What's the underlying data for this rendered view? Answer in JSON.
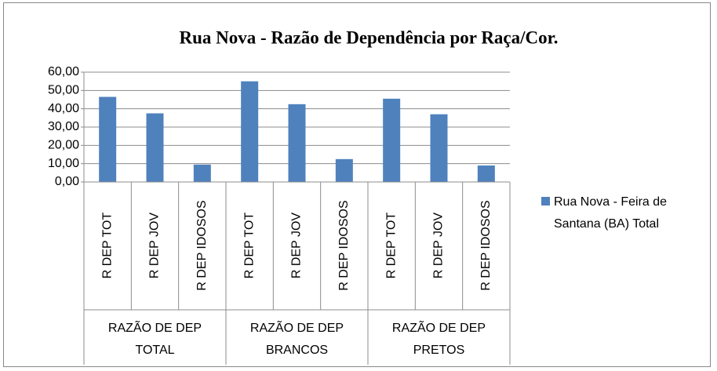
{
  "chart_data": {
    "type": "bar",
    "title": "Rua Nova - Razão de Dependência por Raça/Cor.",
    "categories": [
      "R DEP TOT",
      "R DEP JOV",
      "R DEP IDOSOS",
      "R DEP TOT",
      "R DEP JOV",
      "R DEP IDOSOS",
      "R DEP TOT",
      "R DEP JOV",
      "R DEP IDOSOS"
    ],
    "groups": [
      "RAZÃO DE DEP TOTAL",
      "RAZÃO DE DEP BRANCOS",
      "RAZÃO DE DEP PRETOS"
    ],
    "series": [
      {
        "name": "Rua Nova - Feira de Santana (BA) Total",
        "color": "#4f81bd",
        "values": [
          46.5,
          37.5,
          9.5,
          55,
          42.5,
          12.5,
          45.5,
          37,
          9
        ]
      }
    ],
    "ylim": [
      0,
      60
    ],
    "yticks": [
      {
        "value": 0,
        "label": "0,00"
      },
      {
        "value": 10,
        "label": "10,00"
      },
      {
        "value": 20,
        "label": "20,00"
      },
      {
        "value": 30,
        "label": "30,00"
      },
      {
        "value": 40,
        "label": "40,00"
      },
      {
        "value": 50,
        "label": "50,00"
      },
      {
        "value": 60,
        "label": "60,00"
      }
    ],
    "grid": true,
    "legend": "right"
  }
}
